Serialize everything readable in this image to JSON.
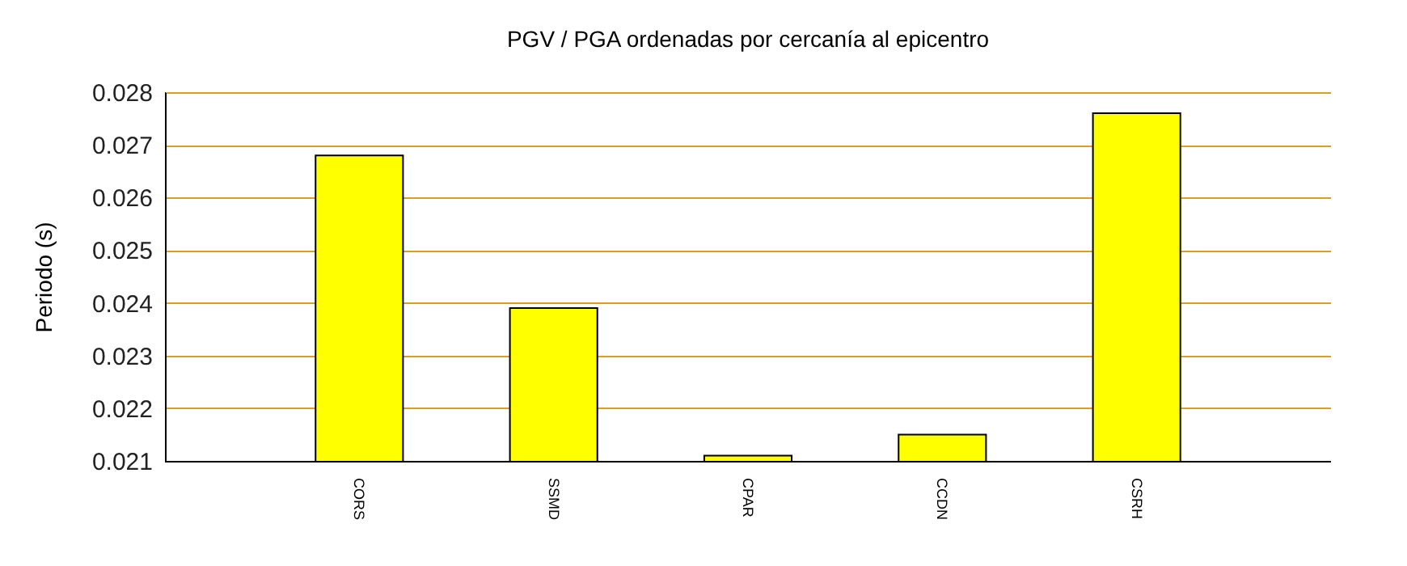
{
  "chart_data": {
    "type": "bar",
    "title": "PGV / PGA ordenadas por cercanía al epicentro",
    "ylabel": "Periodo (s)",
    "categories": [
      "CORS",
      "SSMD",
      "CPAR",
      "CCDN",
      "CSRH"
    ],
    "values": [
      0.0268,
      0.0239,
      0.0211,
      0.0215,
      0.0276
    ],
    "color": "#ffff00",
    "ylim": [
      0.021,
      0.028
    ],
    "yticks": [
      0.021,
      0.022,
      0.023,
      0.024,
      0.025,
      0.026,
      0.027,
      0.028
    ],
    "grid": "y"
  }
}
